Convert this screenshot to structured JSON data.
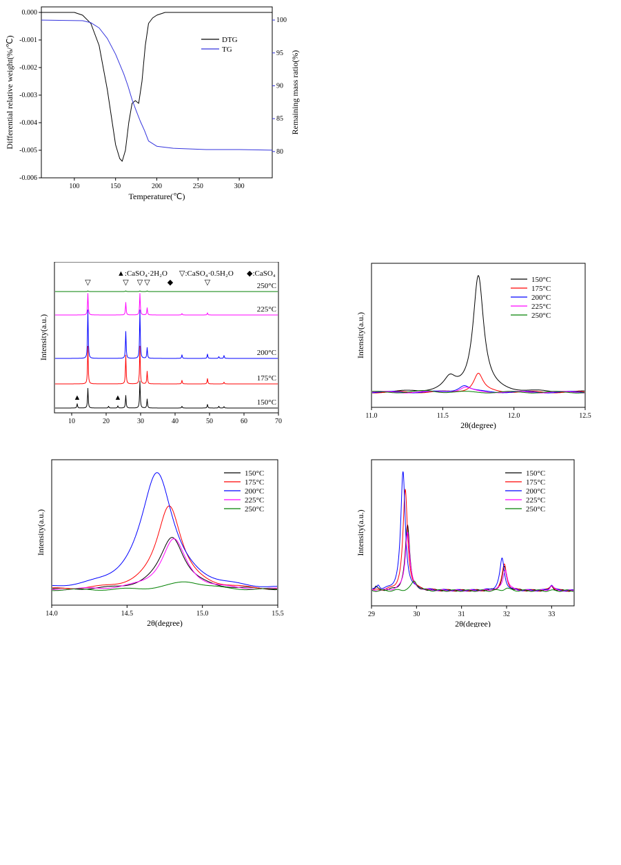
{
  "colors": {
    "black": "#000000",
    "red": "#ff0000",
    "blue": "#0000ff",
    "magenta": "#ff00ff",
    "green": "#008000",
    "tg_blue": "#3333dd"
  },
  "chart_data": [
    {
      "id": "tg",
      "type": "line",
      "xlabel": "Temperature(℃)",
      "ylabel": "Differential relative weight(%/℃)",
      "ylabel_right": "Remaining mass ratio(%)",
      "xlim": [
        60,
        340
      ],
      "ylim": [
        -0.006,
        0.0002
      ],
      "ylim_right": [
        76,
        102
      ],
      "x_ticks": [
        "100",
        "150",
        "200",
        "250",
        "300"
      ],
      "x_tick_values": [
        100,
        150,
        200,
        250,
        300
      ],
      "y_ticks": [
        "0.000",
        "-0.001",
        "-0.002",
        "-0.003",
        "-0.004",
        "-0.005",
        "-0.006"
      ],
      "y_tick_values": [
        0,
        -0.001,
        -0.002,
        -0.003,
        -0.004,
        -0.005,
        -0.006
      ],
      "y_ticks_right": [
        "100",
        "95",
        "90",
        "85",
        "80"
      ],
      "y_tick_values_right": [
        100,
        95,
        90,
        85,
        80
      ],
      "legend_position": "top-right",
      "series": [
        {
          "name": "DTG",
          "color": "#000000",
          "axis": "left",
          "x": [
            60,
            100,
            110,
            120,
            130,
            140,
            145,
            150,
            155,
            158,
            162,
            166,
            170,
            174,
            178,
            182,
            186,
            190,
            195,
            200,
            210,
            230,
            260,
            300,
            340
          ],
          "y": [
            0,
            0,
            -0.0001,
            -0.0004,
            -0.0012,
            -0.0028,
            -0.0038,
            -0.0048,
            -0.0053,
            -0.0054,
            -0.005,
            -0.004,
            -0.0033,
            -0.0032,
            -0.0033,
            -0.0025,
            -0.0012,
            -0.0004,
            -0.0002,
            -0.0001,
            0,
            0,
            0,
            0,
            0
          ]
        },
        {
          "name": "TG",
          "color": "#3333dd",
          "axis": "right",
          "x": [
            60,
            110,
            120,
            130,
            140,
            150,
            160,
            165,
            170,
            175,
            180,
            185,
            190,
            200,
            220,
            260,
            300,
            340
          ],
          "y": [
            100,
            99.9,
            99.6,
            98.8,
            97.2,
            94.8,
            91.8,
            90.0,
            87.9,
            86.2,
            84.6,
            83.2,
            81.6,
            80.8,
            80.5,
            80.3,
            80.3,
            80.2
          ]
        }
      ]
    },
    {
      "id": "xrd",
      "type": "line",
      "xlabel": "2θ(degree)",
      "ylabel": "Intensity(a.u.)",
      "xlim": [
        5,
        70
      ],
      "x_ticks": [
        "10",
        "20",
        "30",
        "40",
        "50",
        "60",
        "70"
      ],
      "x_tick_values": [
        10,
        20,
        30,
        40,
        50,
        60,
        70
      ],
      "legend_items": [
        {
          "symbol": "▲",
          "label": ":CaSO₄·2H₂O"
        },
        {
          "symbol": "▽",
          "label": ":CaSO₄·0.5H₂O"
        },
        {
          "symbol": "◆",
          "label": ":CaSO₄"
        }
      ],
      "marker_symbols": [
        {
          "symbol": "▽",
          "x": 14.7,
          "trace": "250°C"
        },
        {
          "symbol": "▽",
          "x": 25.7,
          "trace": "250°C"
        },
        {
          "symbol": "▽",
          "x": 29.8,
          "trace": "250°C"
        },
        {
          "symbol": "▽",
          "x": 31.9,
          "trace": "250°C"
        },
        {
          "symbol": "◆",
          "x": 38.6,
          "trace": "250°C"
        },
        {
          "symbol": "▽",
          "x": 49.4,
          "trace": "250°C"
        },
        {
          "symbol": "▲",
          "x": 11.6,
          "trace": "150°C"
        },
        {
          "symbol": "▲",
          "x": 23.4,
          "trace": "150°C"
        }
      ],
      "series": [
        {
          "name": "150°C",
          "color": "#000000",
          "peaks": [
            [
              11.6,
              0.12
            ],
            [
              14.7,
              0.55
            ],
            [
              20.7,
              0.05
            ],
            [
              23.4,
              0.06
            ],
            [
              25.7,
              0.35
            ],
            [
              29.8,
              0.75
            ],
            [
              31.9,
              0.25
            ],
            [
              42.0,
              0.05
            ],
            [
              49.4,
              0.1
            ],
            [
              52.7,
              0.05
            ],
            [
              54.2,
              0.04
            ]
          ]
        },
        {
          "name": "175°C",
          "color": "#ff0000",
          "peaks": [
            [
              14.7,
              1.05
            ],
            [
              25.7,
              0.8
            ],
            [
              29.8,
              1.05
            ],
            [
              31.9,
              0.35
            ],
            [
              42.0,
              0.1
            ],
            [
              49.4,
              0.15
            ],
            [
              54.2,
              0.05
            ]
          ]
        },
        {
          "name": "200°C",
          "color": "#0000ff",
          "peaks": [
            [
              14.7,
              1.35
            ],
            [
              25.7,
              0.75
            ],
            [
              29.8,
              1.35
            ],
            [
              31.9,
              0.3
            ],
            [
              42.0,
              0.1
            ],
            [
              49.4,
              0.12
            ],
            [
              52.7,
              0.05
            ],
            [
              54.2,
              0.08
            ]
          ]
        },
        {
          "name": "225°C",
          "color": "#ff00ff",
          "peaks": [
            [
              14.7,
              0.6
            ],
            [
              25.7,
              0.35
            ],
            [
              29.8,
              0.6
            ],
            [
              31.9,
              0.2
            ],
            [
              42.0,
              0.04
            ],
            [
              49.4,
              0.06
            ]
          ]
        },
        {
          "name": "250°C",
          "color": "#008000",
          "peaks": [
            [
              14.7,
              0.02
            ],
            [
              25.7,
              0.02
            ],
            [
              29.8,
              0.02
            ],
            [
              31.9,
              0.02
            ]
          ]
        }
      ]
    },
    {
      "id": "z1",
      "type": "line",
      "xlabel": "2θ(degree)",
      "ylabel": "Intensity(a.u.)",
      "xlim": [
        11.0,
        12.5
      ],
      "x_ticks": [
        "11.0",
        "11.5",
        "12.0",
        "12.5"
      ],
      "x_tick_values": [
        11.0,
        11.5,
        12.0,
        12.5
      ],
      "legend_position": "top-right",
      "series": [
        {
          "name": "150°C",
          "color": "#000000",
          "peaks": [
            [
              11.75,
              1.0,
              0.045
            ],
            [
              11.55,
              0.1,
              0.05
            ]
          ]
        },
        {
          "name": "175°C",
          "color": "#ff0000",
          "peaks": [
            [
              11.75,
              0.16,
              0.04
            ]
          ]
        },
        {
          "name": "200°C",
          "color": "#0000ff",
          "peaks": [
            [
              11.65,
              0.06,
              0.05
            ]
          ]
        },
        {
          "name": "225°C",
          "color": "#ff00ff",
          "peaks": [
            [
              11.66,
              0.04,
              0.05
            ]
          ]
        },
        {
          "name": "250°C",
          "color": "#008000",
          "peaks": [
            [
              11.4,
              0.01,
              0.08
            ]
          ]
        }
      ]
    },
    {
      "id": "z2",
      "type": "line",
      "xlabel": "2θ(degree)",
      "ylabel": "Intensity(a.u.)",
      "xlim": [
        14.0,
        15.5
      ],
      "x_ticks": [
        "14.0",
        "14.5",
        "15.0",
        "15.5"
      ],
      "x_tick_values": [
        14.0,
        14.5,
        15.0,
        15.5
      ],
      "legend_position": "top-right",
      "series": [
        {
          "name": "150°C",
          "color": "#000000",
          "peaks": [
            [
              14.8,
              0.45,
              0.1
            ]
          ]
        },
        {
          "name": "175°C",
          "color": "#ff0000",
          "peaks": [
            [
              14.78,
              0.72,
              0.1
            ]
          ]
        },
        {
          "name": "200°C",
          "color": "#0000ff",
          "peaks": [
            [
              14.7,
              1.0,
              0.13
            ]
          ]
        },
        {
          "name": "225°C",
          "color": "#ff00ff",
          "peaks": [
            [
              14.81,
              0.43,
              0.1
            ]
          ]
        },
        {
          "name": "250°C",
          "color": "#008000",
          "peaks": [
            [
              14.9,
              0.07,
              0.15
            ]
          ]
        }
      ]
    },
    {
      "id": "z3",
      "type": "line",
      "xlabel": "2θ(degree)",
      "ylabel": "Intensity(a.u.)",
      "xlim": [
        29,
        33.5
      ],
      "x_ticks": [
        "29",
        "30",
        "31",
        "32",
        "33"
      ],
      "x_tick_values": [
        29,
        30,
        31,
        32,
        33
      ],
      "legend_position": "top-right",
      "series": [
        {
          "name": "150°C",
          "color": "#000000",
          "peaks": [
            [
              29.8,
              0.55,
              0.06
            ],
            [
              31.95,
              0.2,
              0.06
            ],
            [
              33.0,
              0.04,
              0.05
            ],
            [
              29.1,
              0.03,
              0.04
            ]
          ]
        },
        {
          "name": "175°C",
          "color": "#ff0000",
          "peaks": [
            [
              29.75,
              0.85,
              0.06
            ],
            [
              31.95,
              0.22,
              0.06
            ],
            [
              33.0,
              0.05,
              0.05
            ]
          ]
        },
        {
          "name": "200°C",
          "color": "#0000ff",
          "peaks": [
            [
              29.7,
              1.0,
              0.06
            ],
            [
              31.9,
              0.27,
              0.06
            ],
            [
              33.0,
              0.05,
              0.05
            ],
            [
              29.15,
              0.04,
              0.04
            ]
          ]
        },
        {
          "name": "225°C",
          "color": "#ff00ff",
          "peaks": [
            [
              29.8,
              0.5,
              0.06
            ],
            [
              31.97,
              0.18,
              0.06
            ],
            [
              33.0,
              0.04,
              0.05
            ]
          ]
        },
        {
          "name": "250°C",
          "color": "#008000",
          "peaks": [
            [
              29.95,
              0.08,
              0.08
            ],
            [
              32.0,
              0.02,
              0.08
            ]
          ]
        }
      ]
    }
  ]
}
